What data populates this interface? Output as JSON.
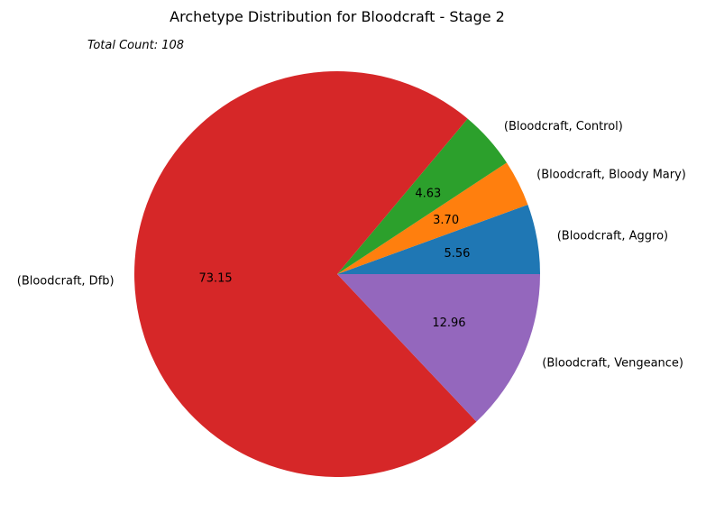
{
  "chart_data": {
    "type": "pie",
    "title": "Archetype Distribution for Bloodcraft - Stage 2",
    "annotation": "Total Count: 108",
    "slices": [
      {
        "label": "(Bloodcraft, Aggro)",
        "value": 5.56,
        "pct_label": "5.56",
        "color": "#1f77b4"
      },
      {
        "label": "(Bloodcraft, Bloody Mary)",
        "value": 3.7,
        "pct_label": "3.70",
        "color": "#ff7f0e"
      },
      {
        "label": "(Bloodcraft, Control)",
        "value": 4.63,
        "pct_label": "4.63",
        "color": "#2ca02c"
      },
      {
        "label": "(Bloodcraft, Dfb)",
        "value": 73.15,
        "pct_label": "73.15",
        "color": "#d62728"
      },
      {
        "label": "(Bloodcraft, Vengeance)",
        "value": 12.96,
        "pct_label": "12.96",
        "color": "#9467bd"
      }
    ]
  }
}
